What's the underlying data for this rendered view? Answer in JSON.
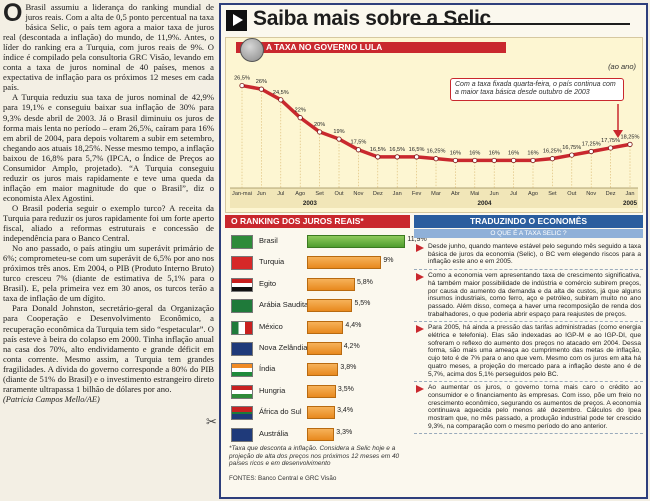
{
  "article": {
    "dropcap": "O",
    "paragraphs": [
      "Brasil assumiu a liderança do ranking mundial de juros reais. Com a alta de 0,5 ponto percentual na taxa básica Selic, o país tem agora a maior taxa de juros real (descontada a inflação) do mundo, de 11,9%. Antes, o líder do ranking era a Turquia, com juros reais de 9%. O índice é compilado pela consultoria GRC Visão, levando em conta a taxa de juros nominal de 40 países, menos a expectativa de inflação para os próximos 12 meses em cada país.",
      "A Turquia reduziu sua taxa de juros nominal de 42,9% para 19,1% e conseguiu baixar sua inflação de 30% para 9,3% desde abril de 2003. Já o Brasil diminuiu os juros de forma mais lenta no período – eram 26,5%, caíram para 16% em abril de 2004, para depois voltarem a subir em setembro, chegando aos atuais 18,25%. Nesse mesmo tempo, a inflação baixou de 16,8% para 5,7% (IPCA, o Índice de Preços ao Consumidor Amplo, projetado). “A Turquia conseguiu reduzir os juros mais rapidamente e teve uma queda da inflação em maior magnitude do que o Brasil”, diz o economista Alex Agostini.",
      "O Brasil poderia seguir o exemplo turco? A receita da Turquia para reduzir os juros rapidamente foi um forte aperto fiscal, aliado a reformas estruturais e concessão de independência para o Banco Central.",
      "No ano passado, o país atingiu um superávit primário de 6%; comprometeu-se com um superávit de 6,5% por ano nos próximos três anos. Em 2004, o PIB (Produto Interno Bruto) turco cresceu 7% (diante de estimativa de 5,1% para o Brasil). E, pela primeira vez em 30 anos, os turcos terão a taxa de inflação de um dígito.",
      "Para Donald Johnston, secretário-geral da Organização para Cooperação e Desenvolvimento Econômico, a recuperação econômica da Turquia tem sido “espetacular”. O país esteve à beira do colapso em 2000. Tinha inflação anual na casa dos 70%, alto endividamento e grande déficit em conta corrente. Mesmo assim, a Turquia tem grandes fragilidades. A dívida do governo corresponde a 80% do PIB (diante de 51% do Brasil) e o investimento estrangeiro direto raramente ultrapassa 1 bilhão de dólares por ano."
    ],
    "credit": "(Patricia Campos Mello/AE)"
  },
  "header": {
    "title": "Saiba mais sobre a Selic"
  },
  "chart_title": "A TAXA NO GOVERNO LULA",
  "unit_label": "(ao ano)",
  "note": "Com a taxa fixada quarta-feira, o país continua com a maior taxa básica desde outubro de 2003",
  "chart_data": {
    "type": "line",
    "title": "A TAXA NO GOVERNO LULA",
    "ylabel": "(ao ano)",
    "x": [
      "Jan-mai",
      "Jun",
      "Jul",
      "Ago",
      "Set",
      "Out",
      "Nov",
      "Dez",
      "Jan",
      "Fev",
      "Mar",
      "Abr",
      "Mai",
      "Jun",
      "Jul",
      "Ago",
      "Set",
      "Out",
      "Nov",
      "Dez",
      "Jan"
    ],
    "values": [
      26.5,
      26,
      24.5,
      22,
      20,
      19,
      17.5,
      16.5,
      16.5,
      16.5,
      16.25,
      16,
      16,
      16,
      16,
      16,
      16.25,
      16.75,
      17.25,
      17.75,
      18.25
    ],
    "labels": [
      "26,5%",
      "26%",
      "24,5%",
      "22%",
      "20%",
      "19%",
      "17,5%",
      "16,5%",
      "16,5%",
      "16,5%",
      "16,25%",
      "16%",
      "16%",
      "16%",
      "16%",
      "16%",
      "16,25%",
      "16,75%",
      "17,25%",
      "17,75%",
      "18,25%"
    ],
    "years": [
      "2003",
      "2004",
      "2005"
    ],
    "line_color": "#c9282e"
  },
  "ranking": {
    "title": "O RANKING DOS JUROS REAIS*",
    "rows": [
      {
        "country": "Brasil",
        "value": 11.9,
        "label": "11,9%"
      },
      {
        "country": "Turquia",
        "value": 9,
        "label": "9%"
      },
      {
        "country": "Egito",
        "value": 5.8,
        "label": "5,8%"
      },
      {
        "country": "Arábia Saudita",
        "value": 5.5,
        "label": "5,5%"
      },
      {
        "country": "México",
        "value": 4.4,
        "label": "4,4%"
      },
      {
        "country": "Nova Zelândia",
        "value": 4.2,
        "label": "4,2%"
      },
      {
        "country": "Índia",
        "value": 3.8,
        "label": "3,8%"
      },
      {
        "country": "Hungria",
        "value": 3.5,
        "label": "3,5%"
      },
      {
        "country": "África do Sul",
        "value": 3.4,
        "label": "3,4%"
      },
      {
        "country": "Austrália",
        "value": 3.3,
        "label": "3,3%"
      }
    ],
    "max": 12,
    "footnote": "*Taxa que desconta a inflação. Considera a Selic hoje e a projeção de alta dos preços nos próximos 12 meses em 40 países ricos e em desenvolvimento"
  },
  "sources": "FONTES: Banco Central e GRC Visão",
  "traduzindo": {
    "title": "TRADUZINDO O ECONOMÊS",
    "subtitle": "O QUE É A TAXA SELIC ?",
    "items": [
      "Desde junho, quando manteve estável pelo segundo mês seguido a taxa básica de juros da economia (Selic), o BC vem elegendo riscos para a inflação este ano e em 2005.",
      "Como a economia vem apresentando taxa de crescimento significativa, há também maior possibilidade de indústria e comércio subirem preços, por causa do aumento da demanda e da alta de custos, já que alguns insumos industriais, como ferro, aço e petróleo, subiram muito no ano passado. Além disso, começa a haver uma recomposição de renda dos trabalhadores, o que poderia abrir espaço para reajustes de preços.",
      "Para 2005, há ainda a pressão das tarifas administradas (como energia elétrica e telefonia). Elas são indexadas ao IGP-M e ao IGP-DI, que sofreram o reflexo do aumento dos preços no atacado em 2004. Dessa forma, são mais uma ameaça ao cumprimento das metas de inflação, cujo teto é de 7% para o ano que vem. Mesmo com os juros em alta há quatro meses, a projeção do mercado para a inflação deste ano é de 5,7%, acima dos 5,1% perseguidos pelo BC.",
      "Ao aumentar os juros, o governo torna mais caro o crédito ao consumidor e o financiamento às empresas. Com isso, põe um freio no crescimento econômico, segurando os aumentos de preços. A economia continuava aquecida pelo menos até dezembro. Cálculos do Ipea mostram que, no mês passado, a produção industrial pode ter crescido 9,3%, na comparação com o mesmo período do ano anterior."
    ]
  }
}
